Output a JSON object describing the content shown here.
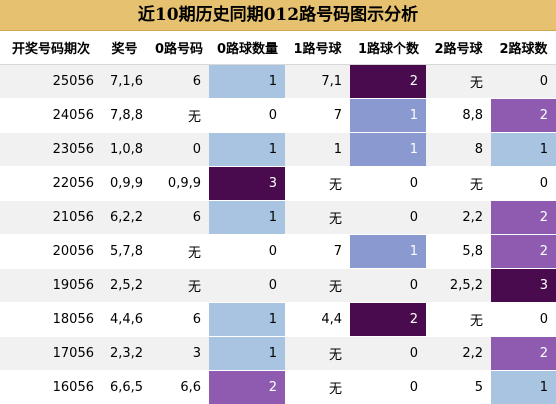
{
  "title": "近10期历史同期012路号码图示分析",
  "headers": [
    "开奖号码期次",
    "奖号",
    "0路号码",
    "0路球数量",
    "1路号球",
    "1路球个数",
    "2路号球",
    "2路球数"
  ],
  "rows": [
    {
      "issue": "25056",
      "prize": "7,1,6",
      "r0": "6",
      "c0": "1",
      "r1": "7,1",
      "c1": "2",
      "r2": "无",
      "c2": "0"
    },
    {
      "issue": "24056",
      "prize": "7,8,8",
      "r0": "无",
      "c0": "0",
      "r1": "7",
      "c1": "1",
      "r2": "8,8",
      "c2": "2"
    },
    {
      "issue": "23056",
      "prize": "1,0,8",
      "r0": "0",
      "c0": "1",
      "r1": "1",
      "c1": "1",
      "r2": "8",
      "c2": "1"
    },
    {
      "issue": "22056",
      "prize": "0,9,9",
      "r0": "0,9,9",
      "c0": "3",
      "r1": "无",
      "c1": "0",
      "r2": "无",
      "c2": "0"
    },
    {
      "issue": "21056",
      "prize": "6,2,2",
      "r0": "6",
      "c0": "1",
      "r1": "无",
      "c1": "0",
      "r2": "2,2",
      "c2": "2"
    },
    {
      "issue": "20056",
      "prize": "5,7,8",
      "r0": "无",
      "c0": "0",
      "r1": "7",
      "c1": "1",
      "r2": "5,8",
      "c2": "2"
    },
    {
      "issue": "19056",
      "prize": "2,5,2",
      "r0": "无",
      "c0": "0",
      "r1": "无",
      "c1": "0",
      "r2": "2,5,2",
      "c2": "3"
    },
    {
      "issue": "18056",
      "prize": "4,4,6",
      "r0": "6",
      "c0": "1",
      "r1": "4,4",
      "c1": "2",
      "r2": "无",
      "c2": "0"
    },
    {
      "issue": "17056",
      "prize": "2,3,2",
      "r0": "3",
      "c0": "1",
      "r1": "无",
      "c1": "0",
      "r2": "2,2",
      "c2": "2"
    },
    {
      "issue": "16056",
      "prize": "6,6,5",
      "r0": "6,6",
      "c0": "2",
      "r1": "无",
      "c1": "0",
      "r2": "5",
      "c2": "1"
    }
  ]
}
